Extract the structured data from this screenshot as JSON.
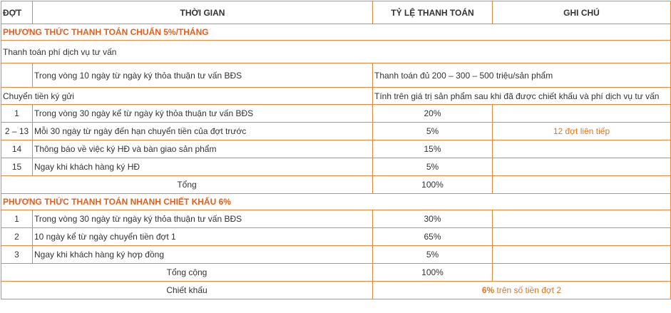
{
  "headers": [
    "ĐỢT",
    "THỜI GIAN",
    "TỶ LỆ THANH TOÁN",
    "GHI CHÚ"
  ],
  "plan1": {
    "title": "PHƯƠNG THỨC THANH TOÁN CHUẨN 5%/THÁNG",
    "consult_fee": "Thanh toán phí dịch vụ tư vấn",
    "consult_time": "Trong vòng 10 ngày từ ngày ký thỏa thuận tư vấn BĐS",
    "consult_amount": "Thanh toán đủ 200 – 300 – 500 triệu/sản phẩm",
    "deposit": "Chuyển tiền ký gửi",
    "deposit_note": "Tính trên giá trị sản phẩm sau khi đã được chiết khấu và phí dịch vụ tư vấn",
    "rows": [
      {
        "phase": "1",
        "time": "Trong vòng 30 ngày kể từ ngày ký thỏa thuận tư vấn BĐS",
        "rate": "20%",
        "note": ""
      },
      {
        "phase": "2 – 13",
        "time": "Mỗi 30 ngày  từ ngày đến hạn chuyển tiền của đợt trước",
        "rate": "5%",
        "note": "12 đợt liên tiếp"
      },
      {
        "phase": "14",
        "time": "Thông báo về việc ký HĐ và bàn giao sản phẩm",
        "rate": "15%",
        "note": ""
      },
      {
        "phase": "15",
        "time": "Ngay khi khách hàng ký HĐ",
        "rate": "5%",
        "note": ""
      }
    ],
    "total_label": "Tổng",
    "total_value": "100%"
  },
  "plan2": {
    "title": "PHƯƠNG THỨC THANH TOÁN NHANH CHIẾT KHẤU 6%",
    "rows": [
      {
        "phase": "1",
        "time": "Trong vòng 30 ngày từ ngày ký thỏa thuận tư vấn BĐS",
        "rate": "30%",
        "note": ""
      },
      {
        "phase": "2",
        "time": "10 ngày kể từ ngày chuyển tiền đợt 1",
        "rate": "65%",
        "note": ""
      },
      {
        "phase": "3",
        "time": "Ngay khi khách hàng ký hợp đồng",
        "rate": "5%",
        "note": ""
      }
    ],
    "total_label": "Tổng cộng",
    "total_value": "100%",
    "discount_label": "Chiết khấu",
    "discount_value": "6%",
    "discount_text": " trên số tiền đợt 2"
  }
}
